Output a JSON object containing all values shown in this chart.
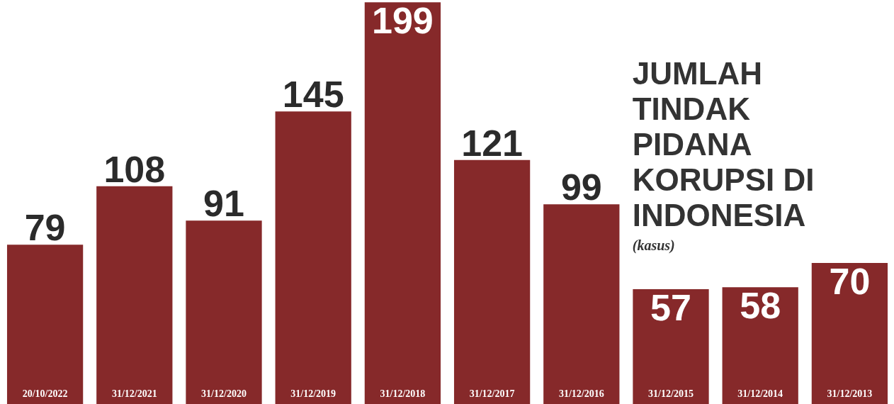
{
  "chart_data": {
    "type": "bar",
    "title": "JUMLAH TINDAK PIDANA KORUPSI DI INDONESIA",
    "subtitle": "(kasus)",
    "categories": [
      "20/10/2022",
      "31/12/2021",
      "31/12/2020",
      "31/12/2019",
      "31/12/2018",
      "31/12/2017",
      "31/12/2016",
      "31/12/2015",
      "31/12/2014",
      "31/12/2013"
    ],
    "values": [
      79,
      108,
      91,
      145,
      199,
      121,
      99,
      57,
      58,
      70
    ],
    "color": "#86292a",
    "data_labels": true
  }
}
